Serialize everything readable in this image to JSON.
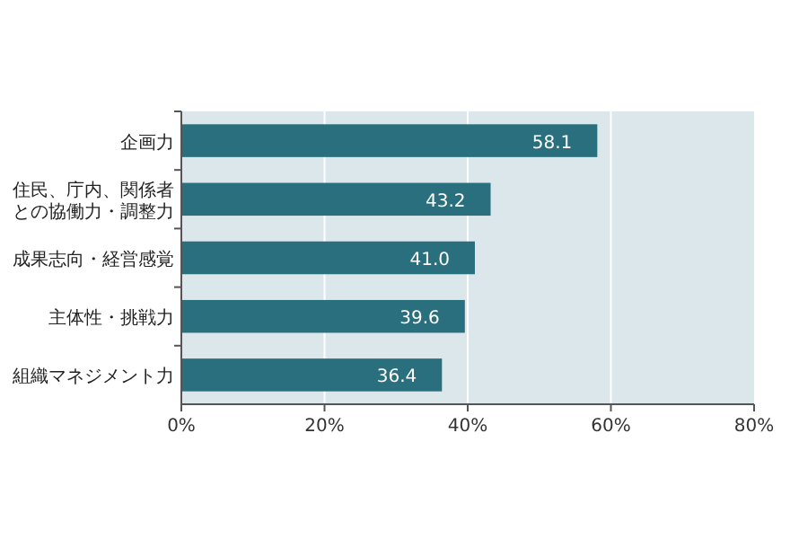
{
  "chart_data": {
    "type": "bar",
    "orientation": "horizontal",
    "categories": [
      "企画力",
      "住民、庁内、関係者との協働力・調整力",
      "成果志向・経営感覚",
      "主体性・挑戦力",
      "組織マネジメント力"
    ],
    "values": [
      58.1,
      43.2,
      41.0,
      39.6,
      36.4
    ],
    "value_labels": [
      "58.1",
      "43.2",
      "41.0",
      "39.6",
      "36.4"
    ],
    "color": "#2a6f7d",
    "xlim": [
      0,
      80
    ],
    "xticks": [
      {
        "value": 0,
        "label": "0%"
      },
      {
        "value": 20,
        "label": "20%"
      },
      {
        "value": 40,
        "label": "40%"
      },
      {
        "value": 60,
        "label": "60%"
      },
      {
        "value": 80,
        "label": "80%"
      }
    ],
    "grid": "x"
  }
}
